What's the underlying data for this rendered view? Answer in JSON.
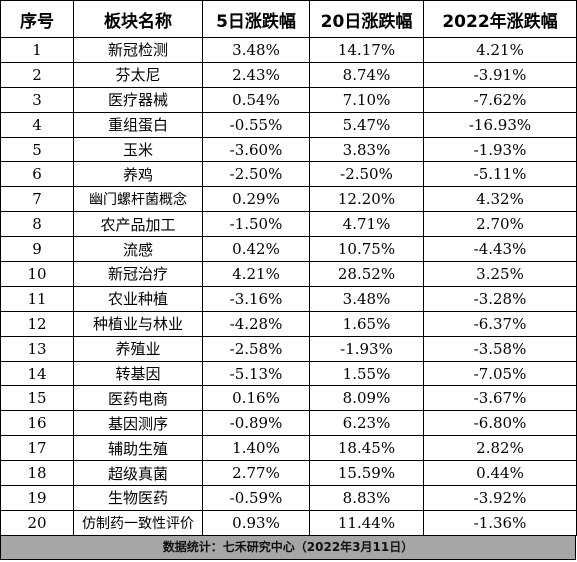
{
  "table": {
    "headers": [
      "序号",
      "板块名称",
      "5日涨跌幅",
      "20日涨跌幅",
      "2022年涨跌幅"
    ],
    "rows": [
      [
        "1",
        "新冠检测",
        "3.48%",
        "14.17%",
        "4.21%"
      ],
      [
        "2",
        "芬太尼",
        "2.43%",
        "8.74%",
        "-3.91%"
      ],
      [
        "3",
        "医疗器械",
        "0.54%",
        "7.10%",
        "-7.62%"
      ],
      [
        "4",
        "重组蛋白",
        "-0.55%",
        "5.47%",
        "-16.93%"
      ],
      [
        "5",
        "玉米",
        "-3.60%",
        "3.83%",
        "-1.93%"
      ],
      [
        "6",
        "养鸡",
        "-2.50%",
        "-2.50%",
        "-5.11%"
      ],
      [
        "7",
        "幽门螺杆菌概念",
        "0.29%",
        "12.20%",
        "4.32%"
      ],
      [
        "8",
        "农产品加工",
        "-1.50%",
        "4.71%",
        "2.70%"
      ],
      [
        "9",
        "流感",
        "0.42%",
        "10.75%",
        "-4.43%"
      ],
      [
        "10",
        "新冠治疗",
        "4.21%",
        "28.52%",
        "3.25%"
      ],
      [
        "11",
        "农业种植",
        "-3.16%",
        "3.48%",
        "-3.28%"
      ],
      [
        "12",
        "种植业与林业",
        "-4.28%",
        "1.65%",
        "-6.37%"
      ],
      [
        "13",
        "养殖业",
        "-2.58%",
        "-1.93%",
        "-3.58%"
      ],
      [
        "14",
        "转基因",
        "-5.13%",
        "1.55%",
        "-7.05%"
      ],
      [
        "15",
        "医药电商",
        "0.16%",
        "8.09%",
        "-3.67%"
      ],
      [
        "16",
        "基因测序",
        "-0.89%",
        "6.23%",
        "-6.80%"
      ],
      [
        "17",
        "辅助生殖",
        "1.40%",
        "18.45%",
        "2.82%"
      ],
      [
        "18",
        "超级真菌",
        "2.77%",
        "15.59%",
        "0.44%"
      ],
      [
        "19",
        "生物医药",
        "-0.59%",
        "8.83%",
        "-3.92%"
      ],
      [
        "20",
        "仿制药一致性评价",
        "0.93%",
        "11.44%",
        "-1.36%"
      ]
    ]
  },
  "footer": {
    "text": "数据统计：七禾研究中心（2022年3月11日）"
  }
}
